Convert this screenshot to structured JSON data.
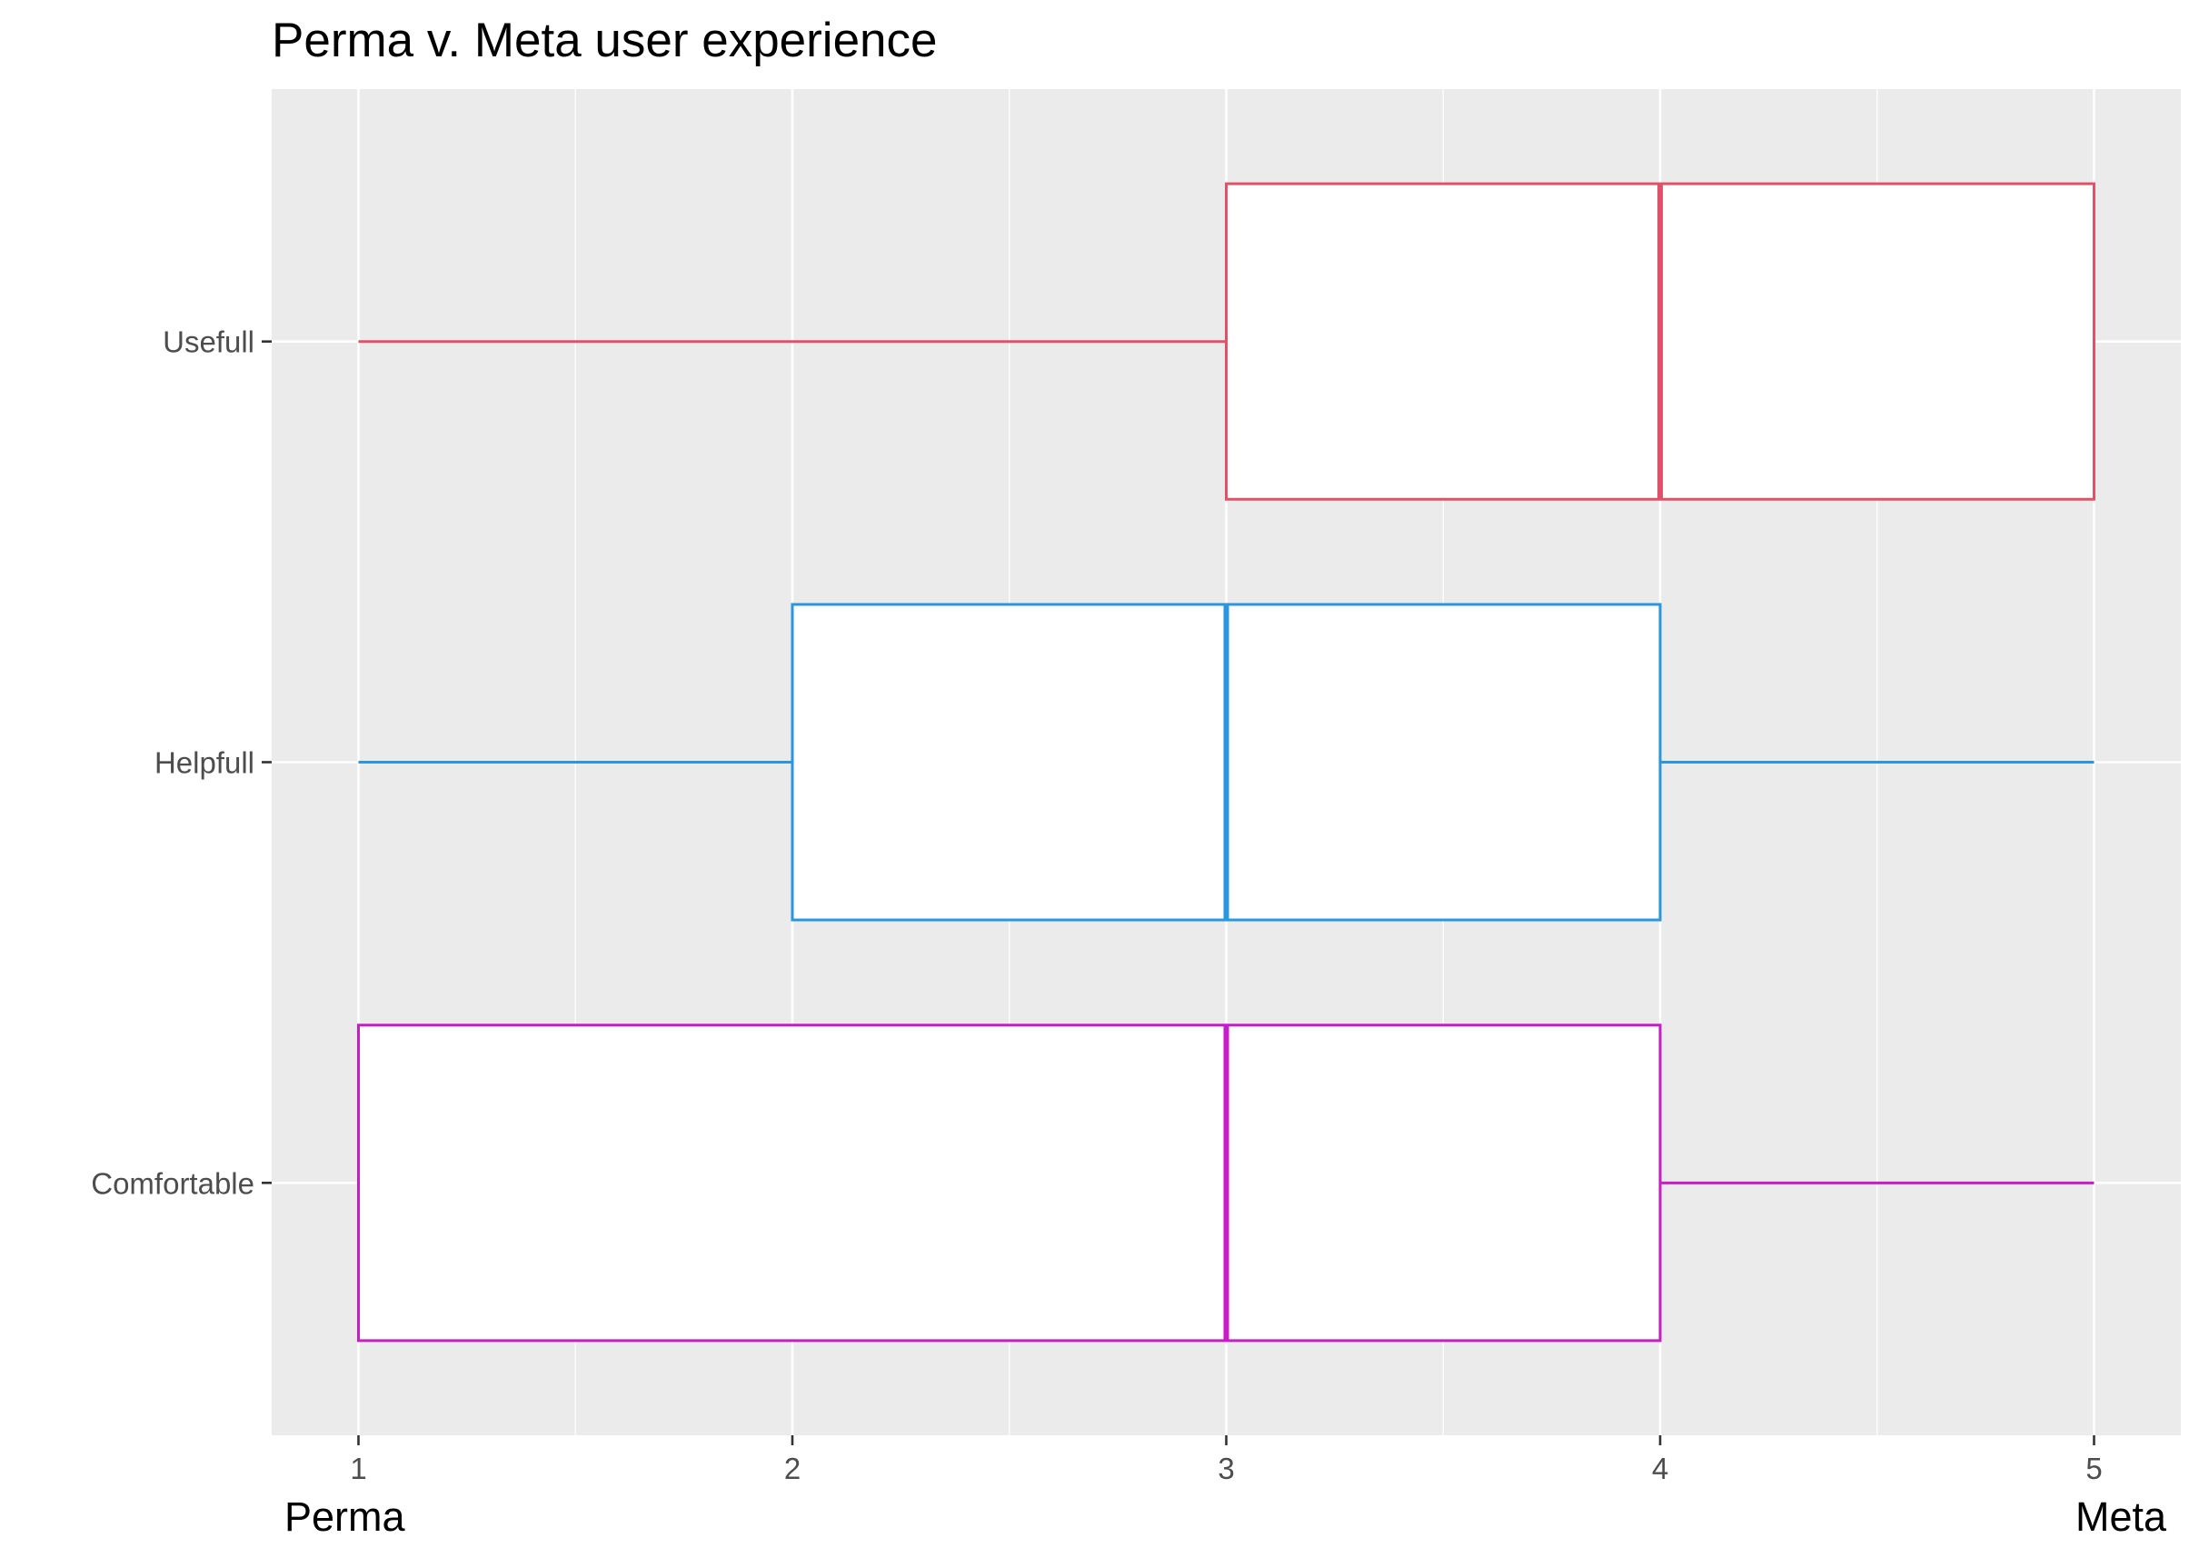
{
  "chart_data": {
    "type": "boxplot",
    "orientation": "horizontal",
    "title": "Perma v. Meta user experience",
    "xlabel": "",
    "ylabel": "",
    "x_left_label": "Perma",
    "x_right_label": "Meta",
    "xlim": [
      0.8,
      5.2
    ],
    "x_ticks": [
      1,
      2,
      3,
      4,
      5
    ],
    "x_tick_labels": [
      "1",
      "2",
      "3",
      "4",
      "5"
    ],
    "categories": [
      "Comfortable",
      "Helpfull",
      "Usefull"
    ],
    "series": [
      {
        "category": "Comfortable",
        "color": "#c71cc7",
        "min": 1,
        "q1": 1,
        "median": 3,
        "q3": 4,
        "max": 5
      },
      {
        "category": "Helpfull",
        "color": "#2b96df",
        "min": 1,
        "q1": 2,
        "median": 3,
        "q3": 4,
        "max": 5
      },
      {
        "category": "Usefull",
        "color": "#e2516a",
        "min": 1,
        "q1": 3,
        "median": 4,
        "q3": 5,
        "max": 5
      }
    ],
    "grid": true,
    "panel_background": "#ebebeb",
    "legend": "none"
  }
}
